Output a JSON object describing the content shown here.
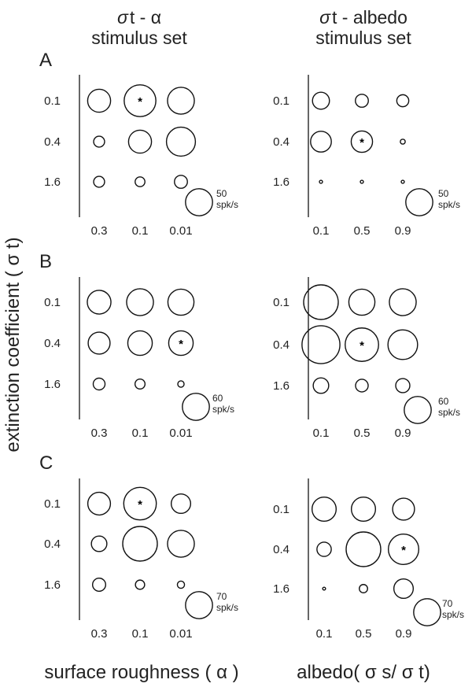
{
  "columns": [
    {
      "title_line1_sym": "σ",
      "title_line1_rest": "t - α",
      "title_line2": "stimulus set"
    },
    {
      "title_line1_sym": "σ",
      "title_line1_rest": "t - albedo",
      "title_line2": "stimulus set"
    }
  ],
  "ylabel": "extinction coefficient ( σ t)",
  "xlabel_left": "surface roughness ( α )",
  "xlabel_right": "albedo( σ s/ σ t)",
  "chart_data": [
    {
      "panel": "A",
      "type": "bubble",
      "x_categories": [
        "0.3",
        "0.1",
        "0.01"
      ],
      "y_categories": [
        "0.1",
        "0.4",
        "1.6"
      ],
      "values": [
        [
          22,
          42,
          30
        ],
        [
          5,
          22,
          35
        ],
        [
          5,
          4,
          7
        ]
      ],
      "preferred": [
        0,
        1
      ],
      "scale_ref": {
        "value": 50,
        "text": "50",
        "unit": "spk/s"
      }
    },
    {
      "panel": "",
      "type": "bubble",
      "x_categories": [
        "0.1",
        "0.5",
        "0.9"
      ],
      "y_categories": [
        "0.1",
        "0.4",
        "1.6"
      ],
      "values": [
        [
          12,
          7,
          6
        ],
        [
          18,
          19,
          1
        ],
        [
          0.4,
          0.4,
          0.4
        ]
      ],
      "preferred": [
        1,
        1
      ],
      "scale_ref": {
        "value": 50,
        "text": "50",
        "unit": "spk/s"
      }
    },
    {
      "panel": "B",
      "type": "bubble",
      "x_categories": [
        "0.3",
        "0.1",
        "0.01"
      ],
      "y_categories": [
        "0.1",
        "0.4",
        "1.6"
      ],
      "values": [
        [
          28,
          36,
          34
        ],
        [
          24,
          30,
          30
        ],
        [
          7,
          5,
          2
        ]
      ],
      "preferred": [
        1,
        2
      ],
      "scale_ref": {
        "value": 60,
        "text": "60",
        "unit": "spk/s"
      }
    },
    {
      "panel": "",
      "type": "bubble",
      "x_categories": [
        "0.1",
        "0.5",
        "0.9"
      ],
      "y_categories": [
        "0.1",
        "0.4",
        "1.6"
      ],
      "values": [
        [
          60,
          34,
          36
        ],
        [
          72,
          56,
          44
        ],
        [
          12,
          8,
          10
        ]
      ],
      "preferred": [
        1,
        1
      ],
      "scale_ref": {
        "value": 60,
        "text": "60",
        "unit": "spk/s"
      }
    },
    {
      "panel": "C",
      "type": "bubble",
      "x_categories": [
        "0.3",
        "0.1",
        "0.01"
      ],
      "y_categories": [
        "0.1",
        "0.4",
        "1.6"
      ],
      "values": [
        [
          30,
          62,
          22
        ],
        [
          14,
          70,
          42
        ],
        [
          10,
          5,
          3
        ]
      ],
      "preferred": [
        0,
        1
      ],
      "scale_ref": {
        "value": 70,
        "text": "70",
        "unit": "spk/s"
      }
    },
    {
      "panel": "",
      "type": "bubble",
      "x_categories": [
        "0.1",
        "0.5",
        "0.9"
      ],
      "y_categories": [
        "0.1",
        "0.4",
        "1.6"
      ],
      "values": [
        [
          34,
          34,
          28
        ],
        [
          12,
          70,
          54
        ],
        [
          0.5,
          4,
          22
        ]
      ],
      "preferred": [
        1,
        2
      ],
      "scale_ref": {
        "value": 70,
        "text": "70",
        "unit": "spk/s"
      }
    }
  ]
}
